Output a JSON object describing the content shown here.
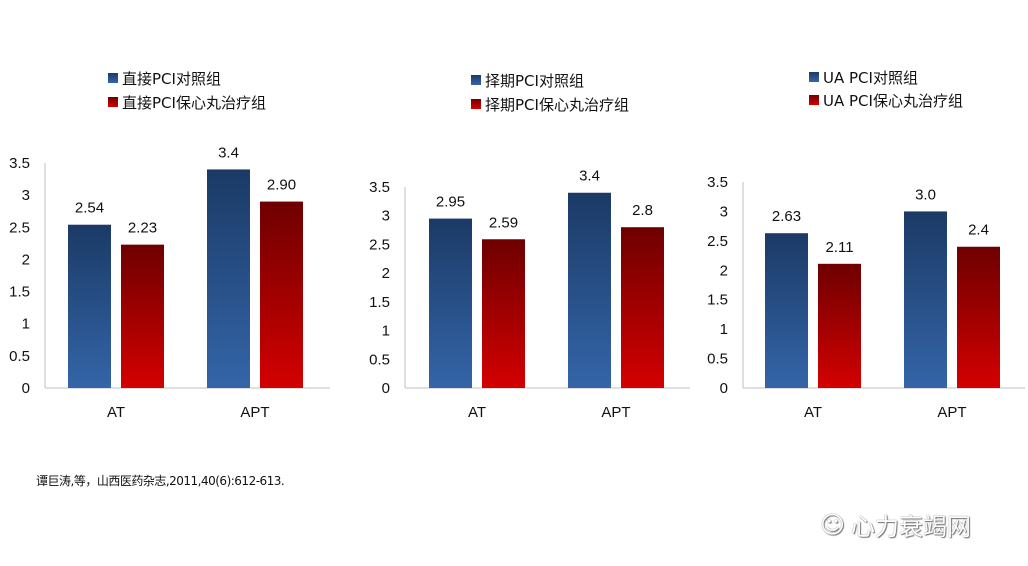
{
  "chart_data": [
    {
      "type": "bar",
      "categories": [
        "AT",
        "APT"
      ],
      "series": [
        {
          "name": "直接PCI对照组",
          "values": [
            2.54,
            3.4
          ],
          "labels": [
            "2.54",
            "3.4"
          ],
          "color": "#2f5f9e"
        },
        {
          "name": "直接PCI保心丸治疗组",
          "values": [
            2.23,
            2.9
          ],
          "labels": [
            "2.23",
            "2.90"
          ],
          "color": "#c00000"
        }
      ],
      "yticks": [
        "0",
        "0.5",
        "1",
        "1.5",
        "2",
        "2.5",
        "3",
        "3.5"
      ],
      "ylim": [
        0,
        3.5
      ],
      "grid": false,
      "legend": "top"
    },
    {
      "type": "bar",
      "categories": [
        "AT",
        "APT"
      ],
      "series": [
        {
          "name": "择期PCI对照组",
          "values": [
            2.95,
            3.4
          ],
          "labels": [
            "2.95",
            "3.4"
          ],
          "color": "#2f5f9e"
        },
        {
          "name": "择期PCI保心丸治疗组",
          "values": [
            2.59,
            2.8
          ],
          "labels": [
            "2.59",
            "2.8"
          ],
          "color": "#c00000"
        }
      ],
      "yticks": [
        "0",
        "0.5",
        "1",
        "1.5",
        "2",
        "2.5",
        "3",
        "3.5"
      ],
      "ylim": [
        0,
        3.5
      ],
      "grid": false,
      "legend": "top"
    },
    {
      "type": "bar",
      "categories": [
        "AT",
        "APT"
      ],
      "series": [
        {
          "name": "UA PCI对照组",
          "values": [
            2.63,
            3.0
          ],
          "labels": [
            "2.63",
            "3.0"
          ],
          "color": "#2f5f9e"
        },
        {
          "name": "UA PCI保心丸治疗组",
          "values": [
            2.11,
            2.4
          ],
          "labels": [
            "2.11",
            "2.4"
          ],
          "color": "#c00000"
        }
      ],
      "yticks": [
        "0",
        "0.5",
        "1",
        "1.5",
        "2",
        "2.5",
        "3",
        "3.5"
      ],
      "ylim": [
        0,
        3.5
      ],
      "grid": false,
      "legend": "top"
    }
  ],
  "citation": "谭巨涛,等，山西医药杂志,2011,40(6):612-613.",
  "watermark": {
    "icon": "wechat-icon",
    "text": "心力衰竭网"
  }
}
